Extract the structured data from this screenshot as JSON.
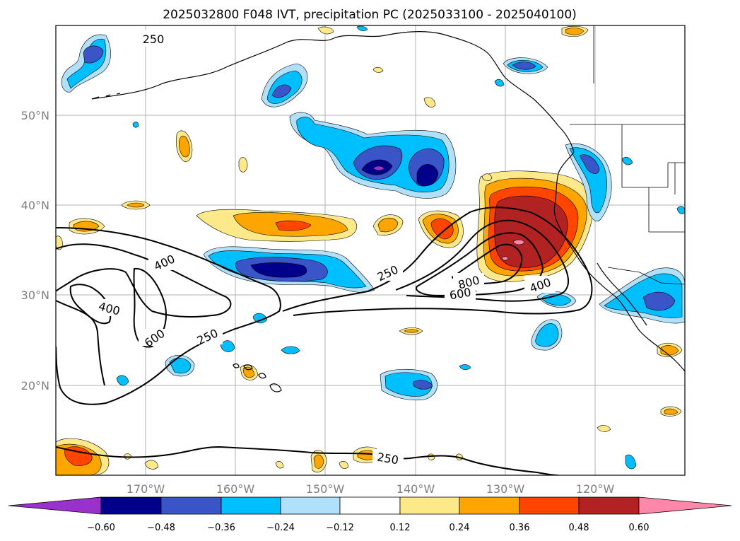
{
  "title": "2025032800 F048 IVT, precipitation PC (2025033100 - 2025040100)",
  "lat_labels": [
    "50°N",
    "40°N",
    "30°N",
    "20°N"
  ],
  "lon_labels": [
    "170°W",
    "160°W",
    "150°W",
    "140°W",
    "130°W",
    "120°W"
  ],
  "contour_labels": [
    "250",
    "400",
    "400",
    "600",
    "250",
    "250",
    "800",
    "600",
    "400",
    "250"
  ],
  "colorbar": {
    "ticks": [
      "−0.60",
      "−0.48",
      "−0.36",
      "−0.24",
      "−0.12",
      "0.12",
      "0.24",
      "0.36",
      "0.48",
      "0.60"
    ],
    "colors": [
      "#9932cc",
      "#00008b",
      "#3a55c8",
      "#00bfff",
      "#b0e0fa",
      "#ffffff",
      "#fde98a",
      "#ffa500",
      "#ff4500",
      "#b22222",
      "#ff88aa"
    ]
  },
  "palette": {
    "purple": "#9932cc",
    "navy": "#00008b",
    "royal": "#3a55c8",
    "sky": "#00bfff",
    "pale": "#b0e0fa",
    "yellow": "#fde98a",
    "orange": "#ffa500",
    "redorange": "#ff4500",
    "firebrick": "#b22222",
    "pink": "#ff88aa"
  }
}
